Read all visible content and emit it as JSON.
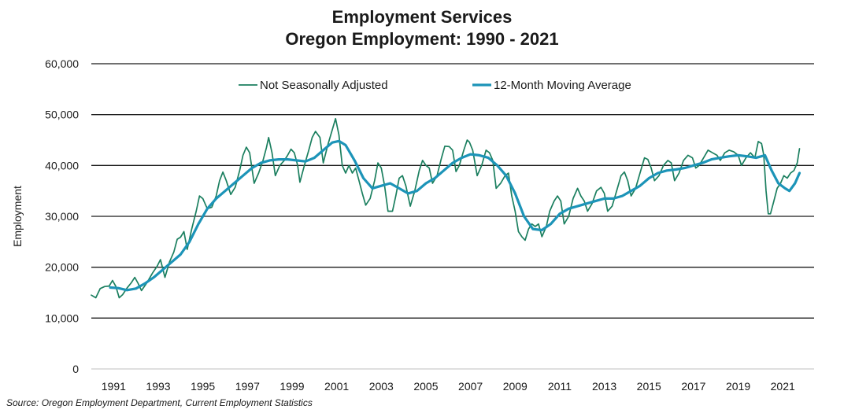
{
  "chart_data": {
    "type": "line",
    "title": "Employment Services",
    "subtitle": "Oregon Employment: 1990 - 2021",
    "xlabel": "",
    "ylabel": "Employment",
    "x_tick_labels": [
      "1991",
      "1993",
      "1995",
      "1997",
      "1999",
      "2001",
      "2003",
      "2005",
      "2007",
      "2009",
      "2011",
      "2013",
      "2015",
      "2017",
      "2019",
      "2021"
    ],
    "y_tick_labels": [
      "0",
      "10,000",
      "20,000",
      "30,000",
      "40,000",
      "50,000",
      "60,000"
    ],
    "ylim": [
      0,
      60000
    ],
    "xlim": [
      1990.0,
      2022.0
    ],
    "grid": "horizontal",
    "legend_position": "top",
    "series": [
      {
        "name": "Not Seasonally Adjusted",
        "color": "#1b7f5f",
        "line_width": "thin",
        "points": [
          [
            1990.0,
            14500
          ],
          [
            1990.2,
            14000
          ],
          [
            1990.4,
            15800
          ],
          [
            1990.6,
            16200
          ],
          [
            1990.8,
            16300
          ],
          [
            1990.95,
            17400
          ],
          [
            1991.1,
            16200
          ],
          [
            1991.25,
            14000
          ],
          [
            1991.4,
            14600
          ],
          [
            1991.6,
            15900
          ],
          [
            1991.8,
            17000
          ],
          [
            1991.95,
            18000
          ],
          [
            1992.1,
            16800
          ],
          [
            1992.25,
            15400
          ],
          [
            1992.5,
            17000
          ],
          [
            1992.75,
            18900
          ],
          [
            1992.95,
            20200
          ],
          [
            1993.1,
            21500
          ],
          [
            1993.3,
            18000
          ],
          [
            1993.5,
            21000
          ],
          [
            1993.7,
            23000
          ],
          [
            1993.85,
            25500
          ],
          [
            1994.0,
            25900
          ],
          [
            1994.15,
            27000
          ],
          [
            1994.3,
            23500
          ],
          [
            1994.5,
            27500
          ],
          [
            1994.7,
            31000
          ],
          [
            1994.85,
            34000
          ],
          [
            1995.0,
            33500
          ],
          [
            1995.2,
            31500
          ],
          [
            1995.4,
            31800
          ],
          [
            1995.6,
            34000
          ],
          [
            1995.75,
            37000
          ],
          [
            1995.9,
            38700
          ],
          [
            1996.05,
            37000
          ],
          [
            1996.25,
            34300
          ],
          [
            1996.45,
            35700
          ],
          [
            1996.65,
            39000
          ],
          [
            1996.8,
            42000
          ],
          [
            1996.95,
            43600
          ],
          [
            1997.1,
            42500
          ],
          [
            1997.3,
            36500
          ],
          [
            1997.5,
            38500
          ],
          [
            1997.7,
            41000
          ],
          [
            1997.85,
            43500
          ],
          [
            1997.95,
            45500
          ],
          [
            1998.1,
            42500
          ],
          [
            1998.25,
            38000
          ],
          [
            1998.45,
            40000
          ],
          [
            1998.65,
            41000
          ],
          [
            1998.8,
            42000
          ],
          [
            1998.95,
            43200
          ],
          [
            1999.1,
            42500
          ],
          [
            1999.25,
            40000
          ],
          [
            1999.35,
            36700
          ],
          [
            1999.55,
            40000
          ],
          [
            1999.75,
            43000
          ],
          [
            1999.9,
            45500
          ],
          [
            2000.05,
            46700
          ],
          [
            2000.25,
            45500
          ],
          [
            2000.4,
            40500
          ],
          [
            2000.6,
            44000
          ],
          [
            2000.8,
            47000
          ],
          [
            2000.95,
            49200
          ],
          [
            2001.1,
            46000
          ],
          [
            2001.25,
            40000
          ],
          [
            2001.4,
            38500
          ],
          [
            2001.55,
            40000
          ],
          [
            2001.7,
            38500
          ],
          [
            2001.85,
            39500
          ],
          [
            2002.0,
            37000
          ],
          [
            2002.15,
            34500
          ],
          [
            2002.3,
            32200
          ],
          [
            2002.5,
            33500
          ],
          [
            2002.7,
            37000
          ],
          [
            2002.85,
            40500
          ],
          [
            2003.0,
            39500
          ],
          [
            2003.15,
            36000
          ],
          [
            2003.3,
            31000
          ],
          [
            2003.5,
            31000
          ],
          [
            2003.65,
            34000
          ],
          [
            2003.8,
            37500
          ],
          [
            2003.95,
            38000
          ],
          [
            2004.1,
            36000
          ],
          [
            2004.3,
            32000
          ],
          [
            2004.5,
            35000
          ],
          [
            2004.7,
            39000
          ],
          [
            2004.85,
            41000
          ],
          [
            2005.0,
            40000
          ],
          [
            2005.15,
            39500
          ],
          [
            2005.3,
            36500
          ],
          [
            2005.5,
            38000
          ],
          [
            2005.7,
            41500
          ],
          [
            2005.85,
            43800
          ],
          [
            2006.05,
            43700
          ],
          [
            2006.2,
            43000
          ],
          [
            2006.35,
            38800
          ],
          [
            2006.5,
            40000
          ],
          [
            2006.7,
            43000
          ],
          [
            2006.85,
            45000
          ],
          [
            2006.95,
            44600
          ],
          [
            2007.1,
            43000
          ],
          [
            2007.3,
            38000
          ],
          [
            2007.5,
            40000
          ],
          [
            2007.7,
            43000
          ],
          [
            2007.85,
            42500
          ],
          [
            2008.0,
            41000
          ],
          [
            2008.15,
            35500
          ],
          [
            2008.35,
            36500
          ],
          [
            2008.55,
            38000
          ],
          [
            2008.7,
            38500
          ],
          [
            2008.85,
            34000
          ],
          [
            2009.0,
            31000
          ],
          [
            2009.15,
            27000
          ],
          [
            2009.3,
            26000
          ],
          [
            2009.45,
            25300
          ],
          [
            2009.6,
            27500
          ],
          [
            2009.75,
            28500
          ],
          [
            2009.9,
            28000
          ],
          [
            2010.05,
            28500
          ],
          [
            2010.2,
            26000
          ],
          [
            2010.4,
            28000
          ],
          [
            2010.55,
            31000
          ],
          [
            2010.75,
            33000
          ],
          [
            2010.9,
            34000
          ],
          [
            2011.05,
            33000
          ],
          [
            2011.2,
            28500
          ],
          [
            2011.4,
            30000
          ],
          [
            2011.6,
            33500
          ],
          [
            2011.8,
            35500
          ],
          [
            2011.95,
            34000
          ],
          [
            2012.1,
            33000
          ],
          [
            2012.25,
            31000
          ],
          [
            2012.45,
            32500
          ],
          [
            2012.65,
            35000
          ],
          [
            2012.85,
            35700
          ],
          [
            2013.0,
            34500
          ],
          [
            2013.15,
            31000
          ],
          [
            2013.35,
            32000
          ],
          [
            2013.55,
            35000
          ],
          [
            2013.75,
            38000
          ],
          [
            2013.9,
            38700
          ],
          [
            2014.05,
            37000
          ],
          [
            2014.2,
            34000
          ],
          [
            2014.4,
            35500
          ],
          [
            2014.6,
            38500
          ],
          [
            2014.8,
            41500
          ],
          [
            2014.95,
            41200
          ],
          [
            2015.1,
            39500
          ],
          [
            2015.25,
            37000
          ],
          [
            2015.45,
            38000
          ],
          [
            2015.65,
            40000
          ],
          [
            2015.85,
            41000
          ],
          [
            2016.0,
            40500
          ],
          [
            2016.15,
            37000
          ],
          [
            2016.35,
            38500
          ],
          [
            2016.55,
            41000
          ],
          [
            2016.75,
            42000
          ],
          [
            2016.95,
            41500
          ],
          [
            2017.1,
            39500
          ],
          [
            2017.25,
            40000
          ],
          [
            2017.45,
            41500
          ],
          [
            2017.65,
            43000
          ],
          [
            2017.85,
            42500
          ],
          [
            2018.05,
            42000
          ],
          [
            2018.2,
            41000
          ],
          [
            2018.4,
            42500
          ],
          [
            2018.6,
            43000
          ],
          [
            2018.8,
            42700
          ],
          [
            2019.0,
            42000
          ],
          [
            2019.15,
            40000
          ],
          [
            2019.35,
            41500
          ],
          [
            2019.55,
            42500
          ],
          [
            2019.75,
            41500
          ],
          [
            2019.9,
            44700
          ],
          [
            2020.05,
            44300
          ],
          [
            2020.15,
            42000
          ],
          [
            2020.25,
            35000
          ],
          [
            2020.35,
            30500
          ],
          [
            2020.45,
            30500
          ],
          [
            2020.6,
            33000
          ],
          [
            2020.75,
            35500
          ],
          [
            2020.9,
            36500
          ],
          [
            2021.05,
            38000
          ],
          [
            2021.2,
            37500
          ],
          [
            2021.35,
            38500
          ],
          [
            2021.5,
            39000
          ],
          [
            2021.65,
            40500
          ],
          [
            2021.75,
            43300
          ]
        ]
      },
      {
        "name": "12-Month Moving Average",
        "color": "#1c94b8",
        "line_width": "thick",
        "points": [
          [
            1990.85,
            16000
          ],
          [
            1991.2,
            15900
          ],
          [
            1991.6,
            15500
          ],
          [
            1992.0,
            15800
          ],
          [
            1992.4,
            16800
          ],
          [
            1992.8,
            18000
          ],
          [
            1993.2,
            19500
          ],
          [
            1993.6,
            21000
          ],
          [
            1994.0,
            22500
          ],
          [
            1994.4,
            25000
          ],
          [
            1994.8,
            28500
          ],
          [
            1995.2,
            31500
          ],
          [
            1995.6,
            33500
          ],
          [
            1996.0,
            35000
          ],
          [
            1996.4,
            36500
          ],
          [
            1996.8,
            38000
          ],
          [
            1997.2,
            39500
          ],
          [
            1997.6,
            40500
          ],
          [
            1998.0,
            41000
          ],
          [
            1998.4,
            41200
          ],
          [
            1998.8,
            41200
          ],
          [
            1999.2,
            41000
          ],
          [
            1999.6,
            40800
          ],
          [
            2000.0,
            41500
          ],
          [
            2000.4,
            43000
          ],
          [
            2000.8,
            44500
          ],
          [
            2001.1,
            44800
          ],
          [
            2001.4,
            44000
          ],
          [
            2001.8,
            41000
          ],
          [
            2002.2,
            37500
          ],
          [
            2002.6,
            35500
          ],
          [
            2003.0,
            36000
          ],
          [
            2003.4,
            36500
          ],
          [
            2003.8,
            35500
          ],
          [
            2004.2,
            34500
          ],
          [
            2004.6,
            35000
          ],
          [
            2005.0,
            36500
          ],
          [
            2005.4,
            37500
          ],
          [
            2005.8,
            39000
          ],
          [
            2006.2,
            40500
          ],
          [
            2006.6,
            41500
          ],
          [
            2007.0,
            42200
          ],
          [
            2007.4,
            42000
          ],
          [
            2007.8,
            41500
          ],
          [
            2008.2,
            40000
          ],
          [
            2008.6,
            38000
          ],
          [
            2009.0,
            34500
          ],
          [
            2009.4,
            30000
          ],
          [
            2009.8,
            27500
          ],
          [
            2010.2,
            27300
          ],
          [
            2010.6,
            28500
          ],
          [
            2011.0,
            30500
          ],
          [
            2011.4,
            31500
          ],
          [
            2011.8,
            32000
          ],
          [
            2012.2,
            32500
          ],
          [
            2012.6,
            33000
          ],
          [
            2013.0,
            33500
          ],
          [
            2013.4,
            33500
          ],
          [
            2013.8,
            34000
          ],
          [
            2014.2,
            35000
          ],
          [
            2014.6,
            36000
          ],
          [
            2015.0,
            37500
          ],
          [
            2015.4,
            38500
          ],
          [
            2015.8,
            39000
          ],
          [
            2016.2,
            39200
          ],
          [
            2016.6,
            39500
          ],
          [
            2017.0,
            40000
          ],
          [
            2017.4,
            40500
          ],
          [
            2017.8,
            41200
          ],
          [
            2018.2,
            41500
          ],
          [
            2018.6,
            41800
          ],
          [
            2019.0,
            42000
          ],
          [
            2019.4,
            41800
          ],
          [
            2019.8,
            41500
          ],
          [
            2020.2,
            42000
          ],
          [
            2020.5,
            39000
          ],
          [
            2020.8,
            36500
          ],
          [
            2021.1,
            35500
          ],
          [
            2021.3,
            35000
          ],
          [
            2021.55,
            36500
          ],
          [
            2021.75,
            38500
          ]
        ]
      }
    ]
  },
  "footer": {
    "source": "Source: Oregon Employment Department, Current Employment Statistics"
  }
}
